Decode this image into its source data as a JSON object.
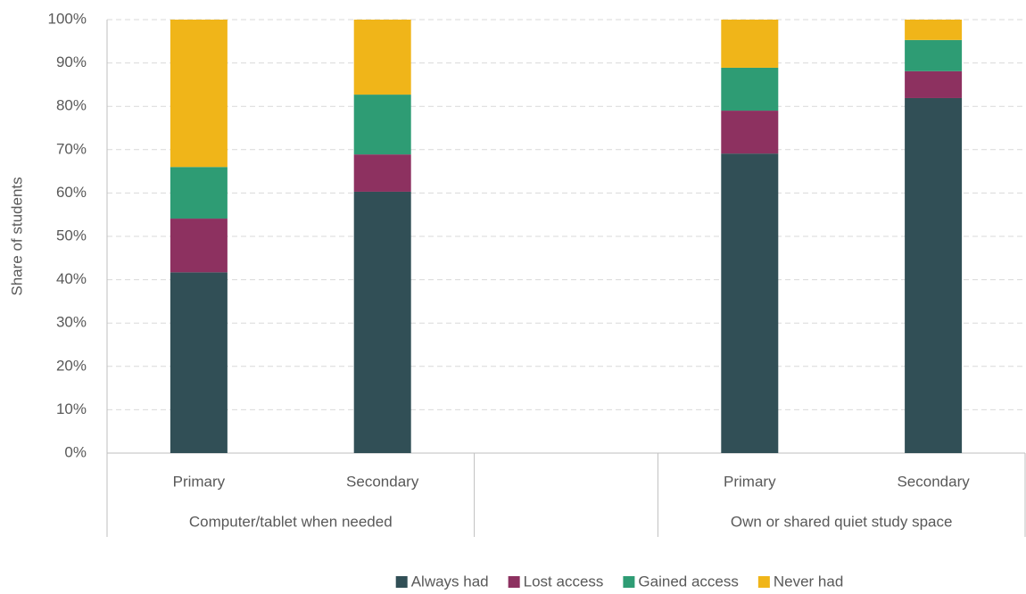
{
  "chart_data": {
    "type": "stacked-bar",
    "ylabel": "Share of students",
    "categories": [
      "Primary",
      "Secondary",
      null,
      "Primary",
      "Secondary"
    ],
    "category_groups": [
      {
        "name": "Computer/tablet when needed",
        "count": 2
      },
      {
        "name": null,
        "count": 1
      },
      {
        "name": "Own or shared quiet study space",
        "count": 2
      }
    ],
    "series": [
      {
        "name": "Always had",
        "color": "#314f56",
        "values": [
          41.7,
          60.3,
          null,
          69.1,
          81.9
        ]
      },
      {
        "name": "Lost access",
        "color": "#8d3160",
        "values": [
          12.4,
          8.6,
          null,
          9.9,
          6.2
        ]
      },
      {
        "name": "Gained access",
        "color": "#2e9c74",
        "values": [
          11.9,
          13.8,
          null,
          9.9,
          7.2
        ]
      },
      {
        "name": "Never had",
        "color": "#f0b519",
        "values": [
          34.0,
          17.3,
          null,
          11.1,
          4.7
        ]
      }
    ],
    "ylim": [
      0,
      100
    ],
    "yticks": [
      {
        "value": 0,
        "label": "0%"
      },
      {
        "value": 10,
        "label": "10%"
      },
      {
        "value": 20,
        "label": "20%"
      },
      {
        "value": 30,
        "label": "30%"
      },
      {
        "value": 40,
        "label": "40%"
      },
      {
        "value": 50,
        "label": "50%"
      },
      {
        "value": 60,
        "label": "60%"
      },
      {
        "value": 70,
        "label": "70%"
      },
      {
        "value": 80,
        "label": "80%"
      },
      {
        "value": 90,
        "label": "90%"
      },
      {
        "value": 100,
        "label": "100%"
      }
    ],
    "grid": true,
    "legend": "bottom"
  }
}
